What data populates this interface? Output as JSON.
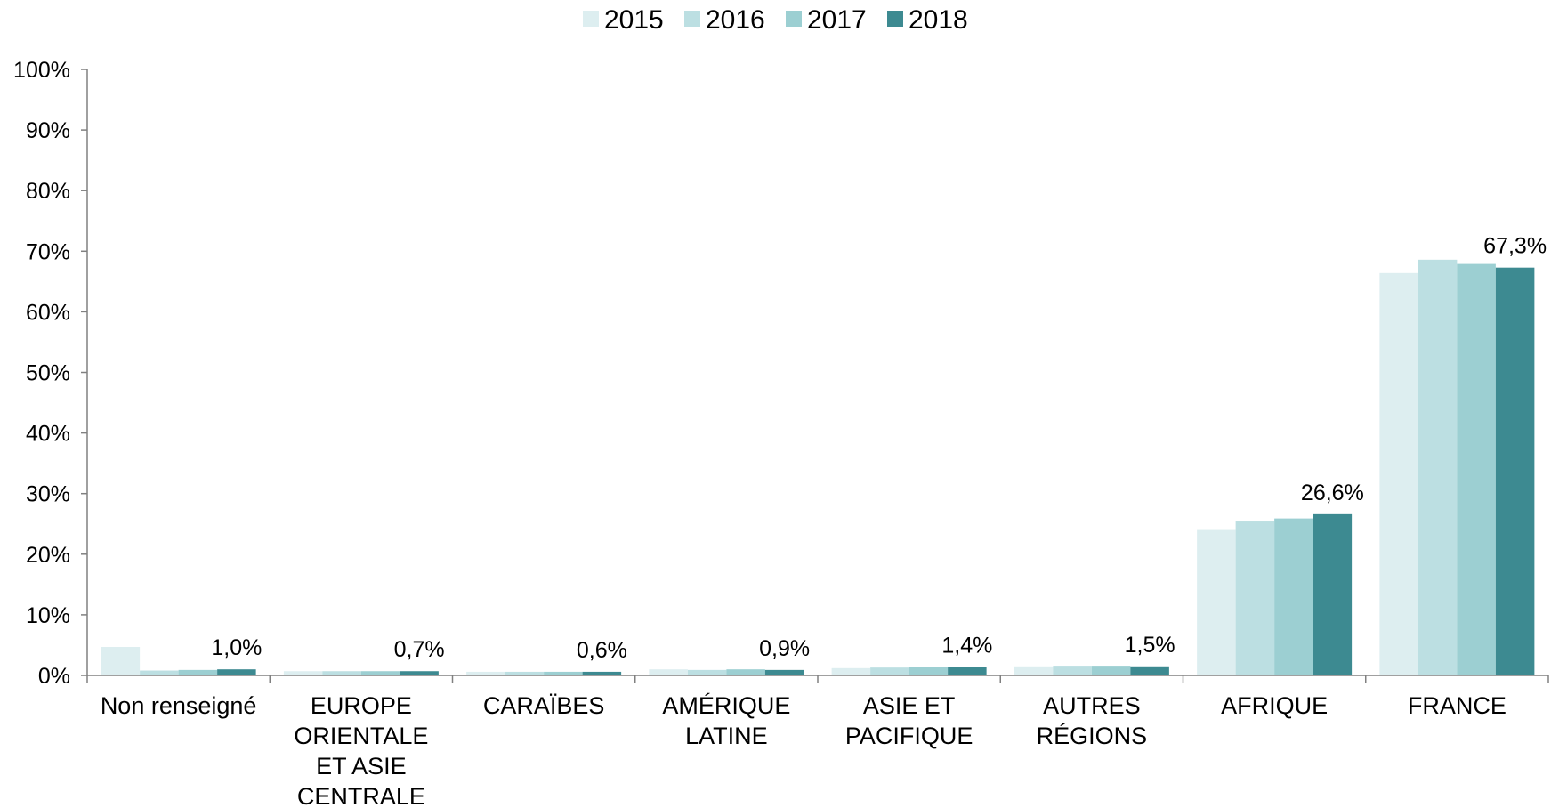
{
  "chart_data": {
    "type": "bar",
    "categories": [
      "Non renseigné",
      "EUROPE ORIENTALE ET ASIE CENTRALE",
      "CARAÏBES",
      "AMÉRIQUE LATINE",
      "ASIE ET PACIFIQUE",
      "AUTRES RÉGIONS",
      "AFRIQUE",
      "FRANCE"
    ],
    "category_label_lines": [
      [
        "Non renseigné"
      ],
      [
        "EUROPE",
        "ORIENTALE",
        "ET ASIE",
        "CENTRALE"
      ],
      [
        "CARAÏBES"
      ],
      [
        "AMÉRIQUE",
        "LATINE"
      ],
      [
        "ASIE ET",
        "PACIFIQUE"
      ],
      [
        "AUTRES",
        "RÉGIONS"
      ],
      [
        "AFRIQUE"
      ],
      [
        "FRANCE"
      ]
    ],
    "series": [
      {
        "name": "2015",
        "color": "#DDEEF0",
        "values": [
          4.7,
          0.7,
          0.6,
          1.0,
          1.2,
          1.5,
          24.0,
          66.4
        ]
      },
      {
        "name": "2016",
        "color": "#BCDFE2",
        "values": [
          0.8,
          0.7,
          0.6,
          0.9,
          1.3,
          1.6,
          25.4,
          68.6
        ]
      },
      {
        "name": "2017",
        "color": "#9CCFD2",
        "values": [
          0.9,
          0.7,
          0.6,
          1.0,
          1.4,
          1.6,
          25.9,
          67.9
        ]
      },
      {
        "name": "2018",
        "color": "#3D8A91",
        "values": [
          1.0,
          0.7,
          0.6,
          0.9,
          1.4,
          1.5,
          26.6,
          67.3
        ]
      }
    ],
    "data_labels": [
      "1,0%",
      "0,7%",
      "0,6%",
      "0,9%",
      "1,4%",
      "1,5%",
      "26,6%",
      "67,3%"
    ],
    "y_ticks": [
      "0%",
      "10%",
      "20%",
      "30%",
      "40%",
      "50%",
      "60%",
      "70%",
      "80%",
      "90%",
      "100%"
    ],
    "ylim": [
      0,
      100
    ],
    "title": "",
    "xlabel": "",
    "ylabel": "",
    "grid": false,
    "legend_position": "top-center"
  }
}
